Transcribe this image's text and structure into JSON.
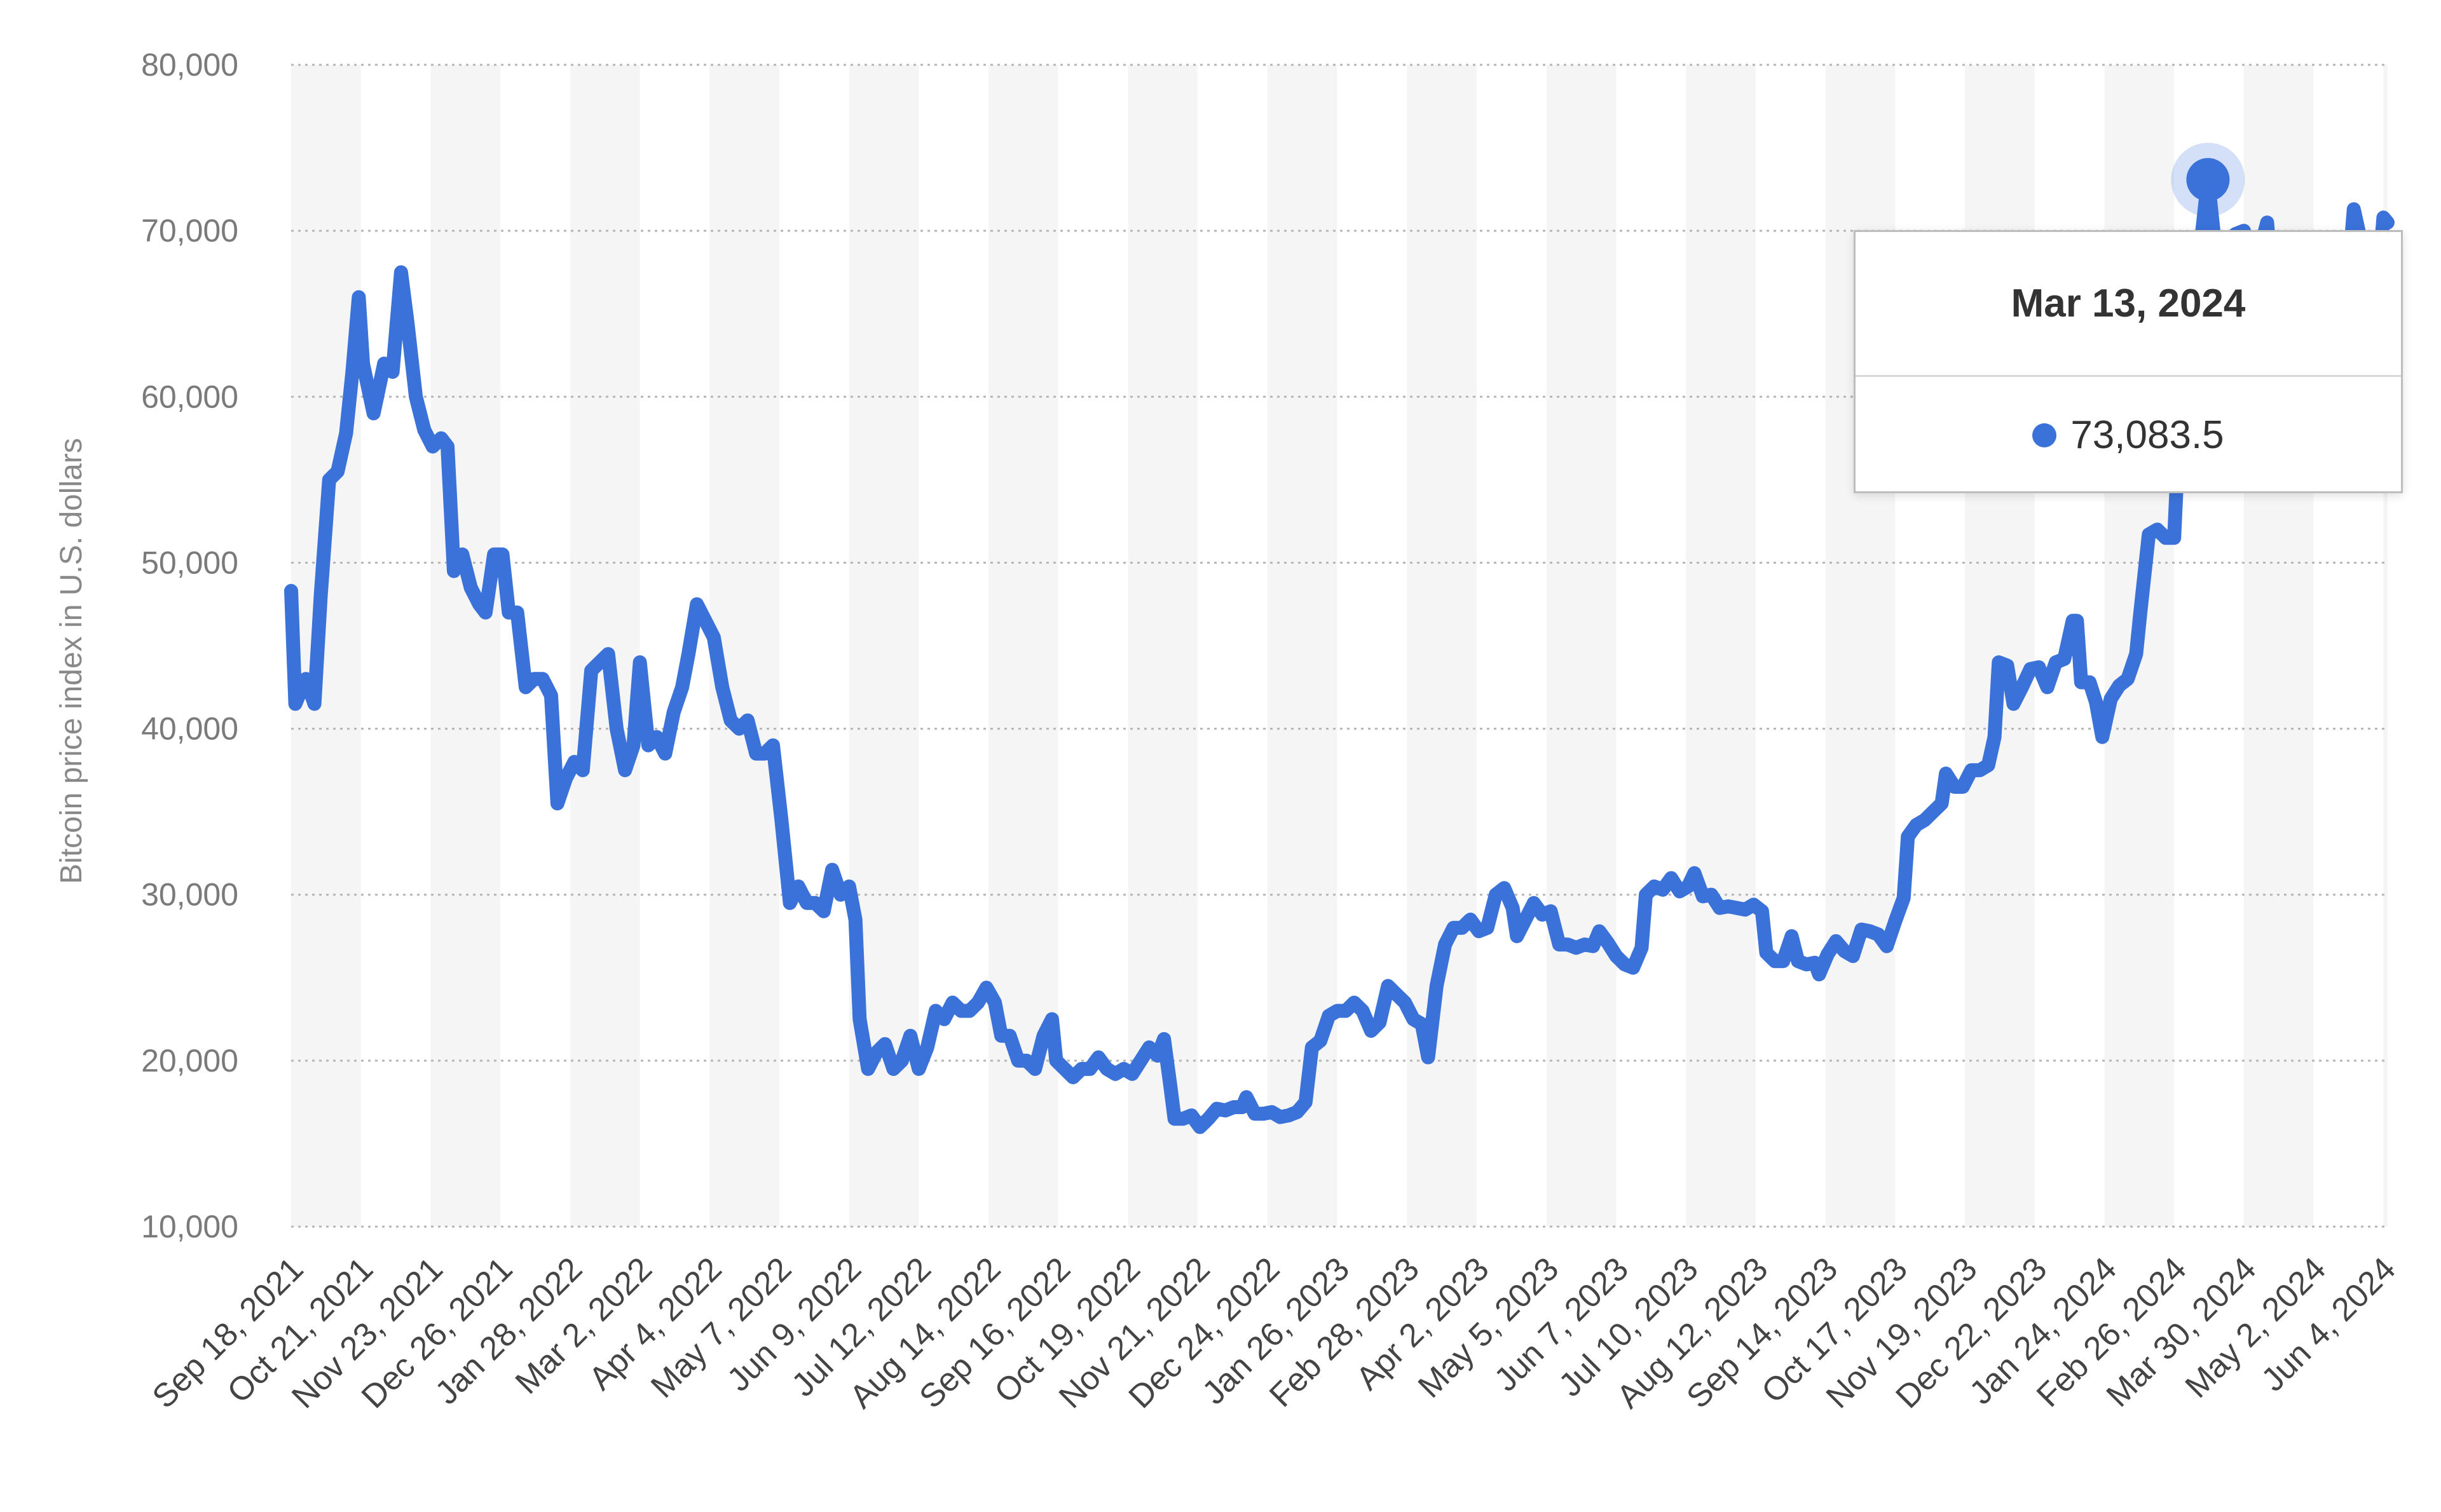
{
  "chart_data": {
    "type": "line",
    "title": "",
    "xlabel": "",
    "ylabel": "Bitcoin price index in U.S. dollars",
    "ylim": [
      10000,
      80000
    ],
    "yticks": [
      "10,000",
      "20,000",
      "30,000",
      "40,000",
      "50,000",
      "60,000",
      "70,000",
      "80,000"
    ],
    "x_tick_labels": [
      "Sep 18, 2021",
      "Oct 21, 2021",
      "Nov 23, 2021",
      "Dec 26, 2021",
      "Jan 28, 2022",
      "Mar 2, 2022",
      "Apr 4, 2022",
      "May 7, 2022",
      "Jun 9, 2022",
      "Jul 12, 2022",
      "Aug 14, 2022",
      "Sep 16, 2022",
      "Oct 19, 2022",
      "Nov 21, 2022",
      "Dec 24, 2022",
      "Jan 26, 2023",
      "Feb 28, 2023",
      "Apr 2, 2023",
      "May 5, 2023",
      "Jun 7, 2023",
      "Jul 10, 2023",
      "Aug 12, 2023",
      "Sep 14, 2023",
      "Oct 17, 2023",
      "Nov 19, 2023",
      "Dec 22, 2023",
      "Jan 24, 2024",
      "Feb 26, 2024",
      "Mar 30, 2024",
      "May 2, 2024",
      "Jun 4, 2024"
    ],
    "grid": "horizontal dotted",
    "line_color": "#3b72d9",
    "series": [
      {
        "values": [
          [
            "2021-09-18",
            48300
          ],
          [
            "2021-09-20",
            41500
          ],
          [
            "2021-09-25",
            43000
          ],
          [
            "2021-09-29",
            41500
          ],
          [
            "2021-10-02",
            48000
          ],
          [
            "2021-10-06",
            55000
          ],
          [
            "2021-10-10",
            55500
          ],
          [
            "2021-10-14",
            57800
          ],
          [
            "2021-10-17",
            61500
          ],
          [
            "2021-10-20",
            66000
          ],
          [
            "2021-10-22",
            62000
          ],
          [
            "2021-10-27",
            59000
          ],
          [
            "2021-11-01",
            62000
          ],
          [
            "2021-11-05",
            61500
          ],
          [
            "2021-11-09",
            67500
          ],
          [
            "2021-11-12",
            64500
          ],
          [
            "2021-11-16",
            60000
          ],
          [
            "2021-11-20",
            58000
          ],
          [
            "2021-11-24",
            57000
          ],
          [
            "2021-11-28",
            57500
          ],
          [
            "2021-12-01",
            57000
          ],
          [
            "2021-12-04",
            49500
          ],
          [
            "2021-12-08",
            50500
          ],
          [
            "2021-12-12",
            48500
          ],
          [
            "2021-12-16",
            47500
          ],
          [
            "2021-12-19",
            47000
          ],
          [
            "2021-12-23",
            50500
          ],
          [
            "2021-12-27",
            50500
          ],
          [
            "2021-12-30",
            47000
          ],
          [
            "2022-01-03",
            47000
          ],
          [
            "2022-01-07",
            42500
          ],
          [
            "2022-01-11",
            43000
          ],
          [
            "2022-01-15",
            43000
          ],
          [
            "2022-01-19",
            42000
          ],
          [
            "2022-01-22",
            35500
          ],
          [
            "2022-01-26",
            37000
          ],
          [
            "2022-01-30",
            38000
          ],
          [
            "2022-02-03",
            37500
          ],
          [
            "2022-02-07",
            43500
          ],
          [
            "2022-02-11",
            44000
          ],
          [
            "2022-02-15",
            44500
          ],
          [
            "2022-02-19",
            40000
          ],
          [
            "2022-02-23",
            37500
          ],
          [
            "2022-02-27",
            39000
          ],
          [
            "2022-03-02",
            44000
          ],
          [
            "2022-03-06",
            39000
          ],
          [
            "2022-03-10",
            39500
          ],
          [
            "2022-03-14",
            38500
          ],
          [
            "2022-03-18",
            41000
          ],
          [
            "2022-03-22",
            42500
          ],
          [
            "2022-03-25",
            44500
          ],
          [
            "2022-03-29",
            47500
          ],
          [
            "2022-04-02",
            46500
          ],
          [
            "2022-04-06",
            45500
          ],
          [
            "2022-04-10",
            42500
          ],
          [
            "2022-04-14",
            40500
          ],
          [
            "2022-04-18",
            40000
          ],
          [
            "2022-04-22",
            40500
          ],
          [
            "2022-04-26",
            38500
          ],
          [
            "2022-04-30",
            38500
          ],
          [
            "2022-05-04",
            39000
          ],
          [
            "2022-05-08",
            34500
          ],
          [
            "2022-05-12",
            29500
          ],
          [
            "2022-05-16",
            30500
          ],
          [
            "2022-05-20",
            29500
          ],
          [
            "2022-05-24",
            29500
          ],
          [
            "2022-05-28",
            29000
          ],
          [
            "2022-06-01",
            31500
          ],
          [
            "2022-06-05",
            30000
          ],
          [
            "2022-06-09",
            30500
          ],
          [
            "2022-06-12",
            28500
          ],
          [
            "2022-06-14",
            22500
          ],
          [
            "2022-06-18",
            19500
          ],
          [
            "2022-06-22",
            20500
          ],
          [
            "2022-06-26",
            21000
          ],
          [
            "2022-06-30",
            19500
          ],
          [
            "2022-07-04",
            20000
          ],
          [
            "2022-07-08",
            21500
          ],
          [
            "2022-07-12",
            19500
          ],
          [
            "2022-07-16",
            20800
          ],
          [
            "2022-07-20",
            23000
          ],
          [
            "2022-07-24",
            22500
          ],
          [
            "2022-07-28",
            23500
          ],
          [
            "2022-08-01",
            23000
          ],
          [
            "2022-08-05",
            23000
          ],
          [
            "2022-08-09",
            23500
          ],
          [
            "2022-08-13",
            24400
          ],
          [
            "2022-08-17",
            23500
          ],
          [
            "2022-08-20",
            21500
          ],
          [
            "2022-08-24",
            21500
          ],
          [
            "2022-08-28",
            20000
          ],
          [
            "2022-09-01",
            20000
          ],
          [
            "2022-09-05",
            19500
          ],
          [
            "2022-09-09",
            21500
          ],
          [
            "2022-09-13",
            22500
          ],
          [
            "2022-09-15",
            20000
          ],
          [
            "2022-09-19",
            19500
          ],
          [
            "2022-09-23",
            19000
          ],
          [
            "2022-09-27",
            19500
          ],
          [
            "2022-10-01",
            19500
          ],
          [
            "2022-10-05",
            20200
          ],
          [
            "2022-10-09",
            19500
          ],
          [
            "2022-10-13",
            19200
          ],
          [
            "2022-10-17",
            19500
          ],
          [
            "2022-10-21",
            19200
          ],
          [
            "2022-10-25",
            20000
          ],
          [
            "2022-10-29",
            20800
          ],
          [
            "2022-11-02",
            20300
          ],
          [
            "2022-11-05",
            21300
          ],
          [
            "2022-11-08",
            18500
          ],
          [
            "2022-11-10",
            16500
          ],
          [
            "2022-11-14",
            16500
          ],
          [
            "2022-11-18",
            16700
          ],
          [
            "2022-11-22",
            16000
          ],
          [
            "2022-11-26",
            16500
          ],
          [
            "2022-11-30",
            17100
          ],
          [
            "2022-12-04",
            17000
          ],
          [
            "2022-12-08",
            17200
          ],
          [
            "2022-12-12",
            17200
          ],
          [
            "2022-12-14",
            17800
          ],
          [
            "2022-12-18",
            16800
          ],
          [
            "2022-12-22",
            16800
          ],
          [
            "2022-12-26",
            16900
          ],
          [
            "2022-12-30",
            16600
          ],
          [
            "2023-01-03",
            16700
          ],
          [
            "2023-01-07",
            16900
          ],
          [
            "2023-01-11",
            17500
          ],
          [
            "2023-01-14",
            20800
          ],
          [
            "2023-01-18",
            21200
          ],
          [
            "2023-01-22",
            22700
          ],
          [
            "2023-01-26",
            23000
          ],
          [
            "2023-01-30",
            23000
          ],
          [
            "2023-02-03",
            23500
          ],
          [
            "2023-02-07",
            23000
          ],
          [
            "2023-02-11",
            21800
          ],
          [
            "2023-02-15",
            22300
          ],
          [
            "2023-02-19",
            24500
          ],
          [
            "2023-02-23",
            24000
          ],
          [
            "2023-02-27",
            23500
          ],
          [
            "2023-03-03",
            22500
          ],
          [
            "2023-03-07",
            22200
          ],
          [
            "2023-03-10",
            20200
          ],
          [
            "2023-03-14",
            24500
          ],
          [
            "2023-03-18",
            27000
          ],
          [
            "2023-03-22",
            28000
          ],
          [
            "2023-03-26",
            28000
          ],
          [
            "2023-03-30",
            28500
          ],
          [
            "2023-04-03",
            27800
          ],
          [
            "2023-04-07",
            28000
          ],
          [
            "2023-04-11",
            30000
          ],
          [
            "2023-04-15",
            30400
          ],
          [
            "2023-04-19",
            29200
          ],
          [
            "2023-04-21",
            27500
          ],
          [
            "2023-04-25",
            28500
          ],
          [
            "2023-04-29",
            29500
          ],
          [
            "2023-05-03",
            28800
          ],
          [
            "2023-05-07",
            29000
          ],
          [
            "2023-05-11",
            27000
          ],
          [
            "2023-05-15",
            27000
          ],
          [
            "2023-05-19",
            26800
          ],
          [
            "2023-05-23",
            27000
          ],
          [
            "2023-05-27",
            26900
          ],
          [
            "2023-05-30",
            27800
          ],
          [
            "2023-06-03",
            27100
          ],
          [
            "2023-06-07",
            26300
          ],
          [
            "2023-06-11",
            25800
          ],
          [
            "2023-06-15",
            25600
          ],
          [
            "2023-06-19",
            26800
          ],
          [
            "2023-06-21",
            30000
          ],
          [
            "2023-06-25",
            30500
          ],
          [
            "2023-06-29",
            30300
          ],
          [
            "2023-07-03",
            31000
          ],
          [
            "2023-07-07",
            30200
          ],
          [
            "2023-07-11",
            30500
          ],
          [
            "2023-07-14",
            31300
          ],
          [
            "2023-07-18",
            29900
          ],
          [
            "2023-07-22",
            30000
          ],
          [
            "2023-07-26",
            29200
          ],
          [
            "2023-07-30",
            29300
          ],
          [
            "2023-08-03",
            29200
          ],
          [
            "2023-08-07",
            29100
          ],
          [
            "2023-08-11",
            29400
          ],
          [
            "2023-08-15",
            29000
          ],
          [
            "2023-08-17",
            26500
          ],
          [
            "2023-08-21",
            26000
          ],
          [
            "2023-08-25",
            26000
          ],
          [
            "2023-08-29",
            27500
          ],
          [
            "2023-09-01",
            26000
          ],
          [
            "2023-09-05",
            25800
          ],
          [
            "2023-09-09",
            25900
          ],
          [
            "2023-09-11",
            25200
          ],
          [
            "2023-09-15",
            26400
          ],
          [
            "2023-09-19",
            27200
          ],
          [
            "2023-09-23",
            26600
          ],
          [
            "2023-09-27",
            26300
          ],
          [
            "2023-10-01",
            27900
          ],
          [
            "2023-10-05",
            27800
          ],
          [
            "2023-10-09",
            27600
          ],
          [
            "2023-10-13",
            26900
          ],
          [
            "2023-10-17",
            28400
          ],
          [
            "2023-10-21",
            29800
          ],
          [
            "2023-10-23",
            33500
          ],
          [
            "2023-10-27",
            34200
          ],
          [
            "2023-10-31",
            34500
          ],
          [
            "2023-11-04",
            35000
          ],
          [
            "2023-11-08",
            35500
          ],
          [
            "2023-11-10",
            37300
          ],
          [
            "2023-11-14",
            36500
          ],
          [
            "2023-11-18",
            36500
          ],
          [
            "2023-11-22",
            37500
          ],
          [
            "2023-11-26",
            37500
          ],
          [
            "2023-11-30",
            37800
          ],
          [
            "2023-12-03",
            39500
          ],
          [
            "2023-12-05",
            44000
          ],
          [
            "2023-12-09",
            43800
          ],
          [
            "2023-12-12",
            41500
          ],
          [
            "2023-12-16",
            42500
          ],
          [
            "2023-12-20",
            43600
          ],
          [
            "2023-12-24",
            43700
          ],
          [
            "2023-12-28",
            42500
          ],
          [
            "2024-01-01",
            44000
          ],
          [
            "2024-01-05",
            44200
          ],
          [
            "2024-01-09",
            46500
          ],
          [
            "2024-01-11",
            46500
          ],
          [
            "2024-01-13",
            42800
          ],
          [
            "2024-01-17",
            42800
          ],
          [
            "2024-01-20",
            41600
          ],
          [
            "2024-01-23",
            39500
          ],
          [
            "2024-01-27",
            41800
          ],
          [
            "2024-01-31",
            42600
          ],
          [
            "2024-02-04",
            43000
          ],
          [
            "2024-02-08",
            44500
          ],
          [
            "2024-02-10",
            47000
          ],
          [
            "2024-02-14",
            51700
          ],
          [
            "2024-02-18",
            52000
          ],
          [
            "2024-02-22",
            51500
          ],
          [
            "2024-02-26",
            51500
          ],
          [
            "2024-02-28",
            57000
          ],
          [
            "2024-03-01",
            62000
          ],
          [
            "2024-03-05",
            66000
          ],
          [
            "2024-03-09",
            68500
          ],
          [
            "2024-03-13",
            73083.5
          ],
          [
            "2024-03-16",
            69500
          ],
          [
            "2024-03-20",
            62500
          ],
          [
            "2024-03-23",
            64000
          ],
          [
            "2024-03-26",
            69800
          ],
          [
            "2024-03-30",
            70000
          ],
          [
            "2024-04-03",
            66000
          ],
          [
            "2024-04-07",
            69000
          ],
          [
            "2024-04-10",
            70500
          ],
          [
            "2024-04-14",
            64000
          ],
          [
            "2024-04-18",
            61000
          ],
          [
            "2024-04-22",
            64500
          ],
          [
            "2024-04-26",
            64000
          ],
          [
            "2024-04-30",
            60500
          ],
          [
            "2024-05-02",
            57500
          ],
          [
            "2024-05-06",
            63000
          ],
          [
            "2024-05-10",
            60800
          ],
          [
            "2024-05-14",
            61500
          ],
          [
            "2024-05-18",
            66500
          ],
          [
            "2024-05-21",
            71300
          ],
          [
            "2024-05-25",
            69000
          ],
          [
            "2024-05-29",
            67500
          ],
          [
            "2024-06-02",
            67500
          ],
          [
            "2024-06-04",
            70800
          ],
          [
            "2024-06-06",
            70500
          ]
        ]
      }
    ],
    "highlight": {
      "date": "2024-03-13",
      "value": 73083.5
    }
  },
  "tooltip": {
    "date_label": "Mar 13, 2024",
    "value_label": "73,083.5"
  }
}
